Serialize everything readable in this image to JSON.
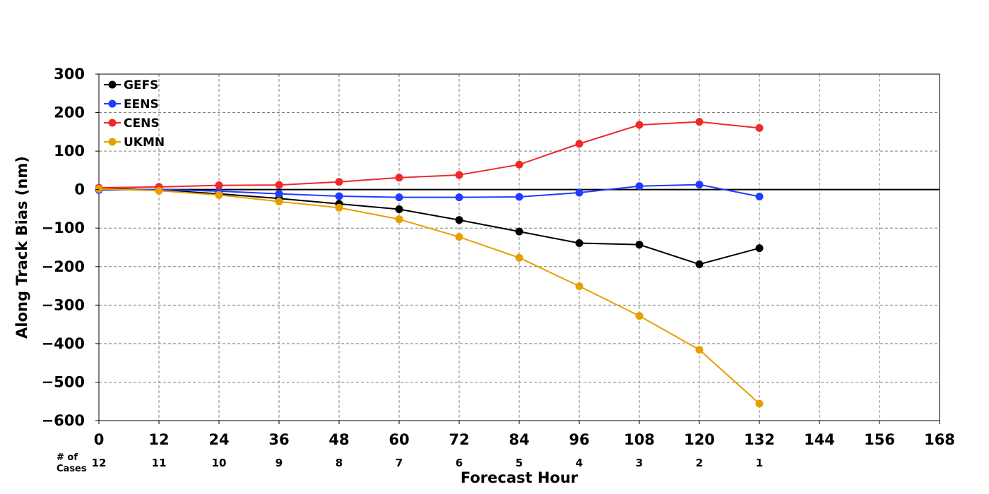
{
  "chart_data": {
    "type": "line",
    "title": "",
    "xlabel": "Forecast Hour",
    "ylabel": "Along Track Bias (nm)",
    "xlim": [
      0,
      168
    ],
    "ylim": [
      -600,
      300
    ],
    "x_ticks": [
      0,
      12,
      24,
      36,
      48,
      60,
      72,
      84,
      96,
      108,
      120,
      132,
      144,
      156,
      168
    ],
    "y_ticks": [
      300,
      200,
      100,
      0,
      -100,
      -200,
      -300,
      -400,
      -500,
      -600
    ],
    "y_tick_labels": [
      "300",
      "200",
      "100",
      "0",
      "−100",
      "−200",
      "−300",
      "−400",
      "−500",
      "−600"
    ],
    "grid": true,
    "legend_position": "top-left",
    "zero_line": true,
    "cases": {
      "label_line1": "# of",
      "label_line2": "Cases",
      "x": [
        0,
        12,
        24,
        36,
        48,
        60,
        72,
        84,
        96,
        108,
        120,
        132
      ],
      "values": [
        "12",
        "11",
        "10",
        "9",
        "8",
        "7",
        "6",
        "5",
        "4",
        "3",
        "2",
        "1"
      ]
    },
    "x": [
      0,
      12,
      24,
      36,
      48,
      60,
      72,
      84,
      96,
      108,
      120,
      132
    ],
    "series": [
      {
        "name": "GEFS",
        "color": "#000000",
        "values": [
          3,
          -1,
          -11,
          -23,
          -37,
          -51,
          -79,
          -109,
          -139,
          -143,
          -194,
          -152
        ]
      },
      {
        "name": "EENS",
        "color": "#1f3cff",
        "values": [
          -1,
          0,
          -4,
          -11,
          -17,
          -20,
          -20,
          -19,
          -8,
          9,
          13,
          -18
        ]
      },
      {
        "name": "CENS",
        "color": "#f02828",
        "values": [
          5,
          7,
          11,
          12,
          20,
          31,
          38,
          65,
          119,
          168,
          176,
          160
        ]
      },
      {
        "name": "UKMN",
        "color": "#e69f00",
        "values": [
          2,
          -3,
          -14,
          -31,
          -47,
          -77,
          -123,
          -177,
          -251,
          -328,
          -416,
          -556
        ]
      }
    ]
  }
}
